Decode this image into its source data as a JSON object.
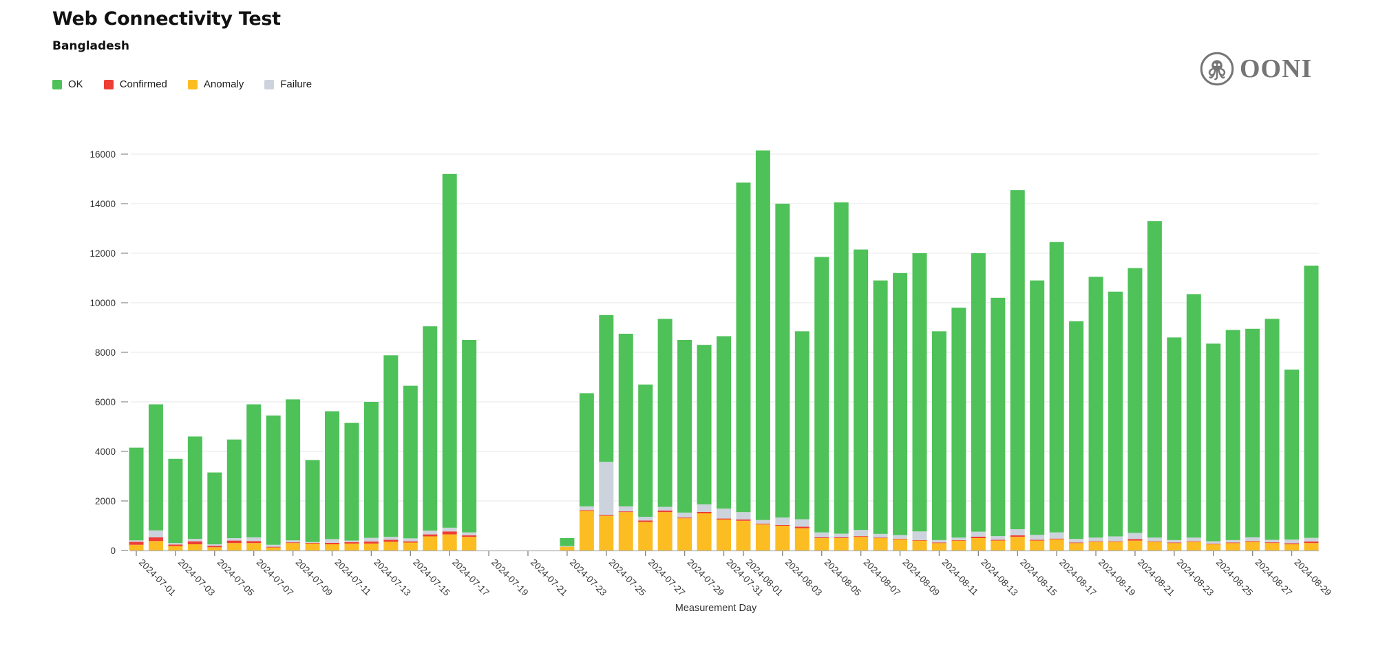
{
  "header": {
    "title": "Web Connectivity Test",
    "subtitle": "Bangladesh"
  },
  "logo": {
    "text": "OONI"
  },
  "legend": [
    {
      "label": "OK",
      "color": "#4ec159"
    },
    {
      "label": "Confirmed",
      "color": "#ee3d35"
    },
    {
      "label": "Anomaly",
      "color": "#fcbd22"
    },
    {
      "label": "Failure",
      "color": "#cdd3dc"
    }
  ],
  "chart_data": {
    "type": "bar",
    "stacked": true,
    "title": "Web Connectivity Test",
    "subtitle": "Bangladesh",
    "xlabel": "Measurement Day",
    "ylabel": "",
    "ylim": [
      0,
      16000
    ],
    "ytick_step": 2000,
    "grid": true,
    "legend_position": "top-left",
    "x_label_rotation_deg": 45,
    "x_labels_shown": "odd days of each month",
    "stack_order_bottom_to_top": [
      "Anomaly",
      "Confirmed",
      "Failure",
      "OK"
    ],
    "categories": [
      "2024-07-01",
      "2024-07-02",
      "2024-07-03",
      "2024-07-04",
      "2024-07-05",
      "2024-07-06",
      "2024-07-07",
      "2024-07-08",
      "2024-07-09",
      "2024-07-10",
      "2024-07-11",
      "2024-07-12",
      "2024-07-13",
      "2024-07-14",
      "2024-07-15",
      "2024-07-16",
      "2024-07-17",
      "2024-07-18",
      "2024-07-19",
      "2024-07-20",
      "2024-07-21",
      "2024-07-22",
      "2024-07-23",
      "2024-07-24",
      "2024-07-25",
      "2024-07-26",
      "2024-07-27",
      "2024-07-28",
      "2024-07-29",
      "2024-07-30",
      "2024-07-31",
      "2024-08-01",
      "2024-08-02",
      "2024-08-03",
      "2024-08-04",
      "2024-08-05",
      "2024-08-06",
      "2024-08-07",
      "2024-08-08",
      "2024-08-09",
      "2024-08-10",
      "2024-08-11",
      "2024-08-12",
      "2024-08-13",
      "2024-08-14",
      "2024-08-15",
      "2024-08-16",
      "2024-08-17",
      "2024-08-18",
      "2024-08-19",
      "2024-08-20",
      "2024-08-21",
      "2024-08-22",
      "2024-08-23",
      "2024-08-24",
      "2024-08-25",
      "2024-08-26",
      "2024-08-27",
      "2024-08-28",
      "2024-08-29",
      "2024-08-30"
    ],
    "series": [
      {
        "name": "Anomaly",
        "color": "#fcbd22",
        "values": [
          230,
          380,
          180,
          250,
          130,
          300,
          300,
          120,
          300,
          280,
          250,
          280,
          280,
          350,
          320,
          570,
          650,
          550,
          0,
          0,
          0,
          0,
          150,
          1600,
          1400,
          1550,
          1150,
          1550,
          1300,
          1500,
          1250,
          1200,
          1050,
          1000,
          900,
          500,
          500,
          550,
          500,
          450,
          400,
          300,
          400,
          500,
          400,
          550,
          400,
          450,
          300,
          350,
          350,
          400,
          350,
          300,
          350,
          250,
          300,
          350,
          300,
          250,
          300
        ]
      },
      {
        "name": "Confirmed",
        "color": "#ee3d35",
        "values": [
          120,
          150,
          60,
          120,
          60,
          100,
          80,
          30,
          30,
          30,
          60,
          60,
          80,
          80,
          50,
          80,
          120,
          60,
          0,
          0,
          0,
          0,
          0,
          30,
          30,
          30,
          60,
          60,
          30,
          60,
          40,
          50,
          30,
          30,
          60,
          30,
          30,
          30,
          20,
          20,
          20,
          20,
          20,
          60,
          30,
          60,
          30,
          30,
          20,
          20,
          20,
          60,
          20,
          20,
          20,
          20,
          20,
          30,
          30,
          40,
          60
        ]
      },
      {
        "name": "Failure",
        "color": "#cdd3dc",
        "values": [
          60,
          280,
          60,
          100,
          60,
          100,
          150,
          80,
          80,
          30,
          150,
          60,
          150,
          120,
          120,
          150,
          150,
          120,
          0,
          0,
          0,
          0,
          30,
          150,
          2150,
          200,
          150,
          150,
          200,
          300,
          400,
          300,
          150,
          300,
          300,
          200,
          150,
          250,
          150,
          150,
          350,
          100,
          100,
          200,
          150,
          250,
          200,
          250,
          150,
          150,
          200,
          250,
          150,
          100,
          150,
          100,
          100,
          150,
          100,
          150,
          150
        ]
      },
      {
        "name": "OK",
        "color": "#4ec159",
        "values": [
          3740,
          5090,
          3400,
          4130,
          2900,
          3980,
          5370,
          5220,
          5690,
          3310,
          5160,
          4750,
          5490,
          7330,
          6160,
          8250,
          14280,
          7770,
          0,
          0,
          0,
          0,
          320,
          4570,
          5920,
          6970,
          5340,
          7590,
          6970,
          6440,
          6960,
          13300,
          14920,
          12670,
          7590,
          11120,
          13370,
          11320,
          10230,
          10580,
          11230,
          8430,
          9280,
          11240,
          9620,
          13690,
          10270,
          11720,
          8780,
          10530,
          9880,
          10690,
          12780,
          8180,
          9830,
          7980,
          8480,
          8420,
          8920,
          6860,
          10990
        ]
      }
    ]
  }
}
